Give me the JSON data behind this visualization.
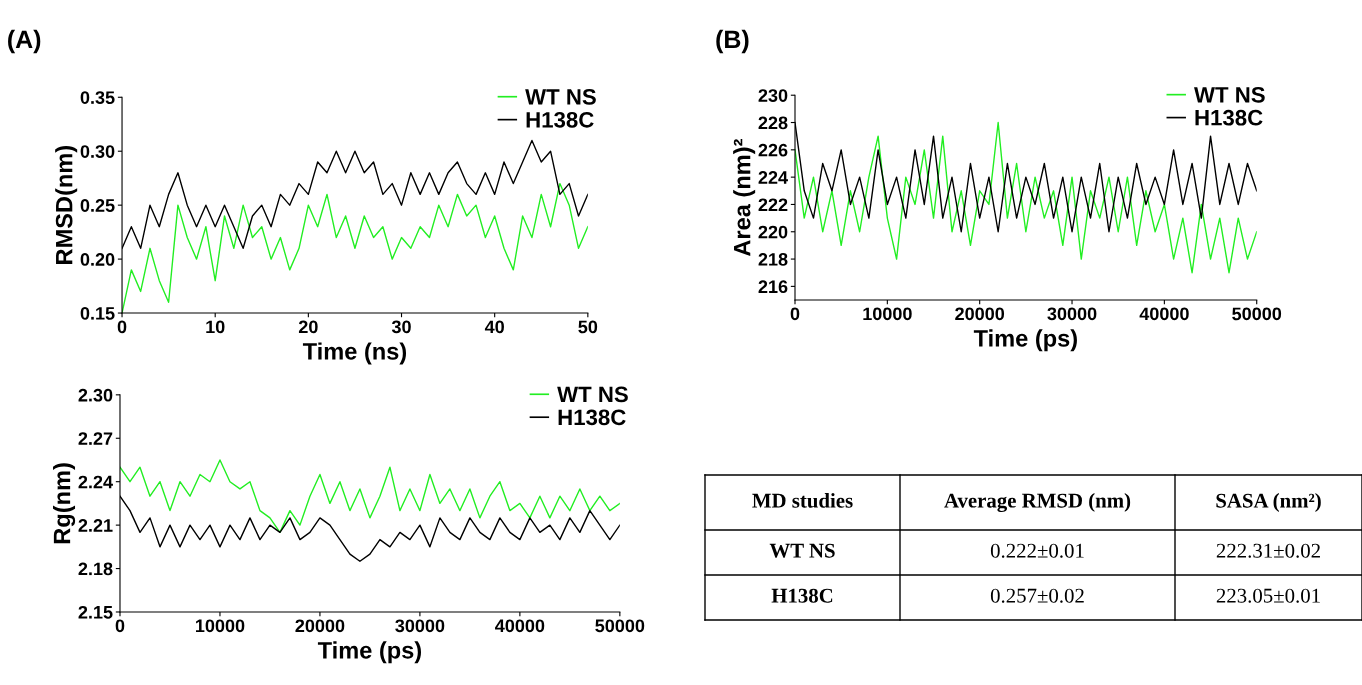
{
  "chart_data": [
    {
      "type": "line",
      "title": "(A)",
      "xlabel": "Time (ns)",
      "ylabel": "RMSD(nm)",
      "xlim": [
        0,
        50
      ],
      "xticks": [
        0,
        10,
        20,
        30,
        40,
        50
      ],
      "ylim": [
        0.15,
        0.35
      ],
      "yticks": [
        {
          "value": 0.15,
          "label": "0.15"
        },
        {
          "value": 0.2,
          "label": "0.20"
        },
        {
          "value": 0.25,
          "label": "0.25"
        },
        {
          "value": 0.3,
          "label": "0.30"
        },
        {
          "value": 0.35,
          "label": "0.35"
        }
      ],
      "legend": "top right",
      "grid": false,
      "x": [
        0,
        1,
        2,
        3,
        4,
        5,
        6,
        7,
        8,
        9,
        10,
        11,
        12,
        13,
        14,
        15,
        16,
        17,
        18,
        19,
        20,
        21,
        22,
        23,
        24,
        25,
        26,
        27,
        28,
        29,
        30,
        31,
        32,
        33,
        34,
        35,
        36,
        37,
        38,
        39,
        40,
        41,
        42,
        43,
        44,
        45,
        46,
        47,
        48,
        49,
        50
      ],
      "series": [
        {
          "name": "WT NS",
          "color": "#22ee22",
          "values": [
            0.15,
            0.19,
            0.17,
            0.21,
            0.18,
            0.16,
            0.25,
            0.22,
            0.2,
            0.23,
            0.18,
            0.24,
            0.21,
            0.25,
            0.22,
            0.23,
            0.2,
            0.22,
            0.19,
            0.21,
            0.25,
            0.23,
            0.26,
            0.22,
            0.24,
            0.21,
            0.24,
            0.22,
            0.23,
            0.2,
            0.22,
            0.21,
            0.23,
            0.22,
            0.25,
            0.23,
            0.26,
            0.24,
            0.25,
            0.22,
            0.24,
            0.21,
            0.19,
            0.24,
            0.22,
            0.26,
            0.23,
            0.27,
            0.25,
            0.21,
            0.23
          ]
        },
        {
          "name": "H138C",
          "color": "#000000",
          "values": [
            0.21,
            0.23,
            0.21,
            0.25,
            0.23,
            0.26,
            0.28,
            0.25,
            0.23,
            0.25,
            0.23,
            0.25,
            0.23,
            0.21,
            0.24,
            0.25,
            0.23,
            0.26,
            0.25,
            0.27,
            0.26,
            0.29,
            0.28,
            0.3,
            0.28,
            0.3,
            0.28,
            0.29,
            0.26,
            0.27,
            0.25,
            0.28,
            0.26,
            0.28,
            0.26,
            0.28,
            0.29,
            0.27,
            0.26,
            0.28,
            0.26,
            0.29,
            0.27,
            0.29,
            0.31,
            0.29,
            0.3,
            0.26,
            0.27,
            0.24,
            0.26
          ]
        }
      ]
    },
    {
      "type": "line",
      "title": "(B)",
      "xlabel": "Time (ps)",
      "ylabel": "Area (nm)²",
      "xlim": [
        0,
        50000
      ],
      "xticks": [
        0,
        10000,
        20000,
        30000,
        40000,
        50000
      ],
      "ylim": [
        215,
        230
      ],
      "yticks": [
        216,
        218,
        220,
        222,
        224,
        226,
        228,
        230
      ],
      "legend": "top right",
      "grid": false,
      "x": [
        0,
        1000,
        2000,
        3000,
        4000,
        5000,
        6000,
        7000,
        8000,
        9000,
        10000,
        11000,
        12000,
        13000,
        14000,
        15000,
        16000,
        17000,
        18000,
        19000,
        20000,
        21000,
        22000,
        23000,
        24000,
        25000,
        26000,
        27000,
        28000,
        29000,
        30000,
        31000,
        32000,
        33000,
        34000,
        35000,
        36000,
        37000,
        38000,
        39000,
        40000,
        41000,
        42000,
        43000,
        44000,
        45000,
        46000,
        47000,
        48000,
        49000,
        50000
      ],
      "series": [
        {
          "name": "WT NS",
          "color": "#22ee22",
          "values": [
            226,
            221,
            224,
            220,
            223,
            219,
            223,
            220,
            224,
            227,
            221,
            218,
            224,
            222,
            226,
            221,
            227,
            220,
            223,
            219,
            223,
            222,
            228,
            221,
            225,
            220,
            224,
            221,
            223,
            219,
            224,
            218,
            223,
            221,
            224,
            220,
            224,
            219,
            223,
            220,
            222,
            218,
            221,
            217,
            222,
            218,
            221,
            217,
            221,
            218,
            220
          ]
        },
        {
          "name": "H138C",
          "color": "#000000",
          "values": [
            228,
            223,
            221,
            225,
            223,
            226,
            222,
            224,
            221,
            226,
            222,
            224,
            221,
            226,
            222,
            227,
            221,
            224,
            220,
            225,
            221,
            224,
            220,
            225,
            221,
            224,
            222,
            225,
            221,
            224,
            220,
            224,
            221,
            225,
            220,
            224,
            221,
            225,
            222,
            224,
            222,
            226,
            222,
            225,
            221,
            227,
            222,
            225,
            222,
            225,
            223
          ]
        }
      ]
    },
    {
      "type": "line",
      "xlabel": "Time (ps)",
      "ylabel": "Rg(nm)",
      "xlim": [
        0,
        50000
      ],
      "xticks": [
        0,
        10000,
        20000,
        30000,
        40000,
        50000
      ],
      "ylim": [
        2.15,
        2.3
      ],
      "yticks": [
        {
          "value": 2.15,
          "label": "2.15"
        },
        {
          "value": 2.18,
          "label": "2.18"
        },
        {
          "value": 2.21,
          "label": "2.21"
        },
        {
          "value": 2.24,
          "label": "2.24"
        },
        {
          "value": 2.27,
          "label": "2.27"
        },
        {
          "value": 2.3,
          "label": "2.30"
        }
      ],
      "legend": "top right",
      "grid": false,
      "x": [
        0,
        1000,
        2000,
        3000,
        4000,
        5000,
        6000,
        7000,
        8000,
        9000,
        10000,
        11000,
        12000,
        13000,
        14000,
        15000,
        16000,
        17000,
        18000,
        19000,
        20000,
        21000,
        22000,
        23000,
        24000,
        25000,
        26000,
        27000,
        28000,
        29000,
        30000,
        31000,
        32000,
        33000,
        34000,
        35000,
        36000,
        37000,
        38000,
        39000,
        40000,
        41000,
        42000,
        43000,
        44000,
        45000,
        46000,
        47000,
        48000,
        49000,
        50000
      ],
      "series": [
        {
          "name": "WT NS",
          "color": "#22ee22",
          "values": [
            2.25,
            2.24,
            2.25,
            2.23,
            2.24,
            2.22,
            2.24,
            2.23,
            2.245,
            2.24,
            2.255,
            2.24,
            2.235,
            2.24,
            2.22,
            2.215,
            2.205,
            2.22,
            2.21,
            2.23,
            2.245,
            2.225,
            2.24,
            2.22,
            2.235,
            2.215,
            2.23,
            2.25,
            2.22,
            2.235,
            2.22,
            2.245,
            2.225,
            2.235,
            2.22,
            2.235,
            2.215,
            2.23,
            2.24,
            2.22,
            2.225,
            2.215,
            2.23,
            2.215,
            2.23,
            2.22,
            2.235,
            2.22,
            2.23,
            2.22,
            2.225
          ]
        },
        {
          "name": "H138C",
          "color": "#000000",
          "values": [
            2.23,
            2.22,
            2.205,
            2.215,
            2.195,
            2.21,
            2.195,
            2.21,
            2.2,
            2.21,
            2.195,
            2.21,
            2.2,
            2.215,
            2.2,
            2.21,
            2.205,
            2.215,
            2.2,
            2.205,
            2.215,
            2.21,
            2.2,
            2.19,
            2.185,
            2.19,
            2.2,
            2.195,
            2.205,
            2.2,
            2.21,
            2.195,
            2.215,
            2.205,
            2.2,
            2.215,
            2.205,
            2.2,
            2.215,
            2.205,
            2.2,
            2.215,
            2.205,
            2.21,
            2.2,
            2.215,
            2.205,
            2.22,
            2.21,
            2.2,
            2.21
          ]
        }
      ]
    },
    {
      "type": "other",
      "categories": [
        "MD studies",
        "Average RMSD (nm)",
        "SASA (nm²)"
      ],
      "y_categories": [
        "WT NS",
        "H138C"
      ],
      "cell_labels": [
        [
          "0.222±0.01",
          "222.31±0.02"
        ],
        [
          "0.257±0.02",
          "223.05±0.01"
        ]
      ]
    }
  ]
}
